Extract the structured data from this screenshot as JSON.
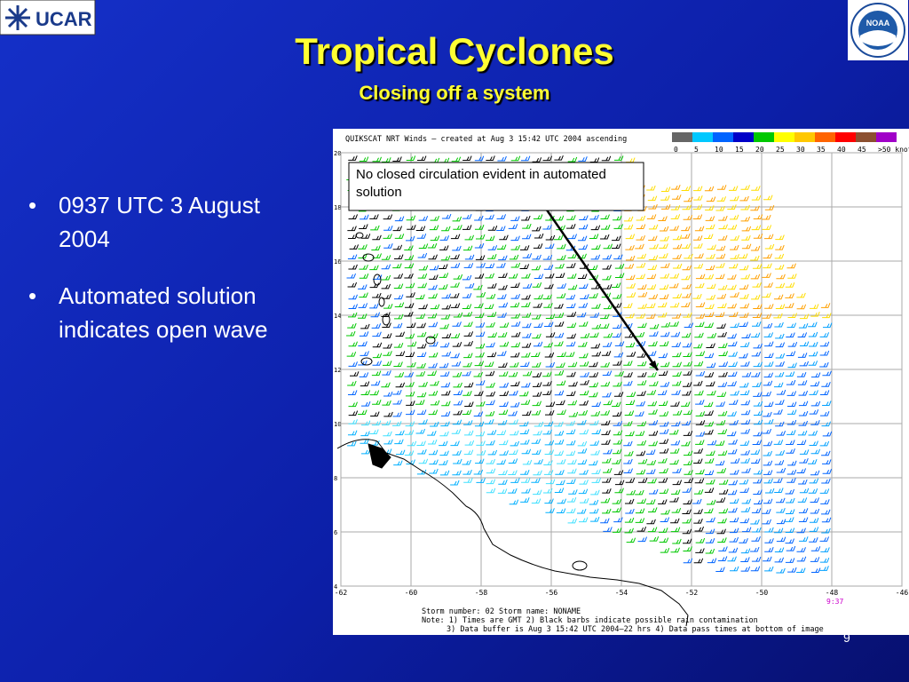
{
  "header": {
    "title": "Tropical Cyclones",
    "subtitle": "Closing off a system"
  },
  "logos": {
    "left": "UCAR",
    "right": "NOAA"
  },
  "bullets": [
    "0937 UTC 3 August 2004",
    "Automated solution indicates open wave"
  ],
  "map": {
    "title": "QUIKSCAT NRT Winds — created at Aug  3 15:42 UTC 2004 ascending",
    "legend": [
      "0",
      "5",
      "10",
      "15",
      "20",
      "25",
      "30",
      "35",
      "40",
      "45",
      ">50 knots"
    ],
    "lat_labels": [
      "20",
      "18",
      "16",
      "14",
      "12",
      "10",
      "8",
      "6",
      "4"
    ],
    "lon_labels": [
      "-62",
      "-60",
      "-58",
      "-56",
      "-54",
      "-52",
      "-50",
      "-48",
      "-46"
    ],
    "pass_time": "9:37",
    "notes": [
      "Storm number: 02     Storm name: NONAME",
      "Note: 1) Times are GMT  2) Black barbs indicate possible rain contamination",
      "3) Data buffer is Aug  3 15:42 UTC 2004–22 hrs 4) Data pass times at bottom of image"
    ]
  },
  "callout": "No closed circulation evident in automated solution",
  "page_number": "9"
}
